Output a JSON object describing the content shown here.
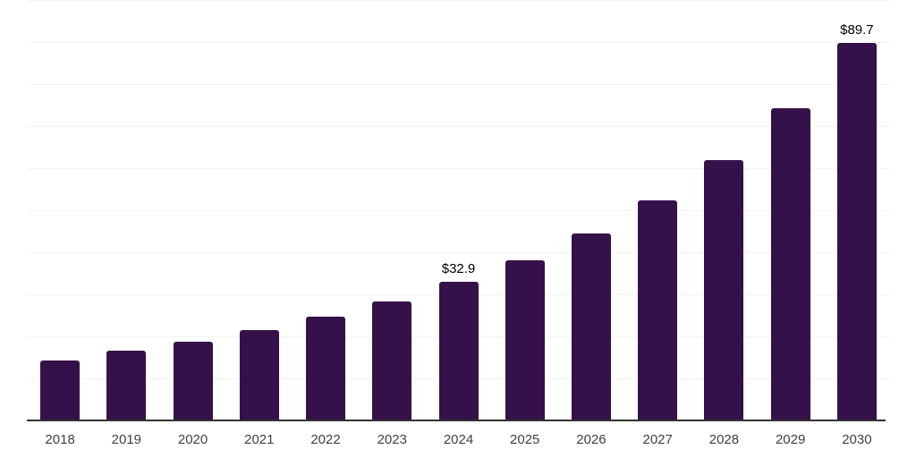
{
  "chart_data": {
    "type": "bar",
    "title": "",
    "xlabel": "",
    "ylabel": "",
    "categories": [
      "2018",
      "2019",
      "2020",
      "2021",
      "2022",
      "2023",
      "2024",
      "2025",
      "2026",
      "2027",
      "2028",
      "2029",
      "2030"
    ],
    "values": [
      14.3,
      16.6,
      18.7,
      21.5,
      24.7,
      28.3,
      32.9,
      38.1,
      44.5,
      52.3,
      61.9,
      74.3,
      89.7
    ],
    "data_labels": [
      "",
      "",
      "",
      "",
      "",
      "",
      "$32.9",
      "",
      "",
      "",
      "",
      "",
      "$89.7"
    ],
    "ylim": [
      0,
      100
    ],
    "y_gridline_interval": 10,
    "grid": "horizontal",
    "legend": "none",
    "colors": {
      "bar": "#351149",
      "axis_line": "#333333",
      "gridline": "#f2f2f2",
      "tick_label": "#3f3f3f",
      "data_label": "#000000",
      "background": "#ffffff"
    }
  }
}
